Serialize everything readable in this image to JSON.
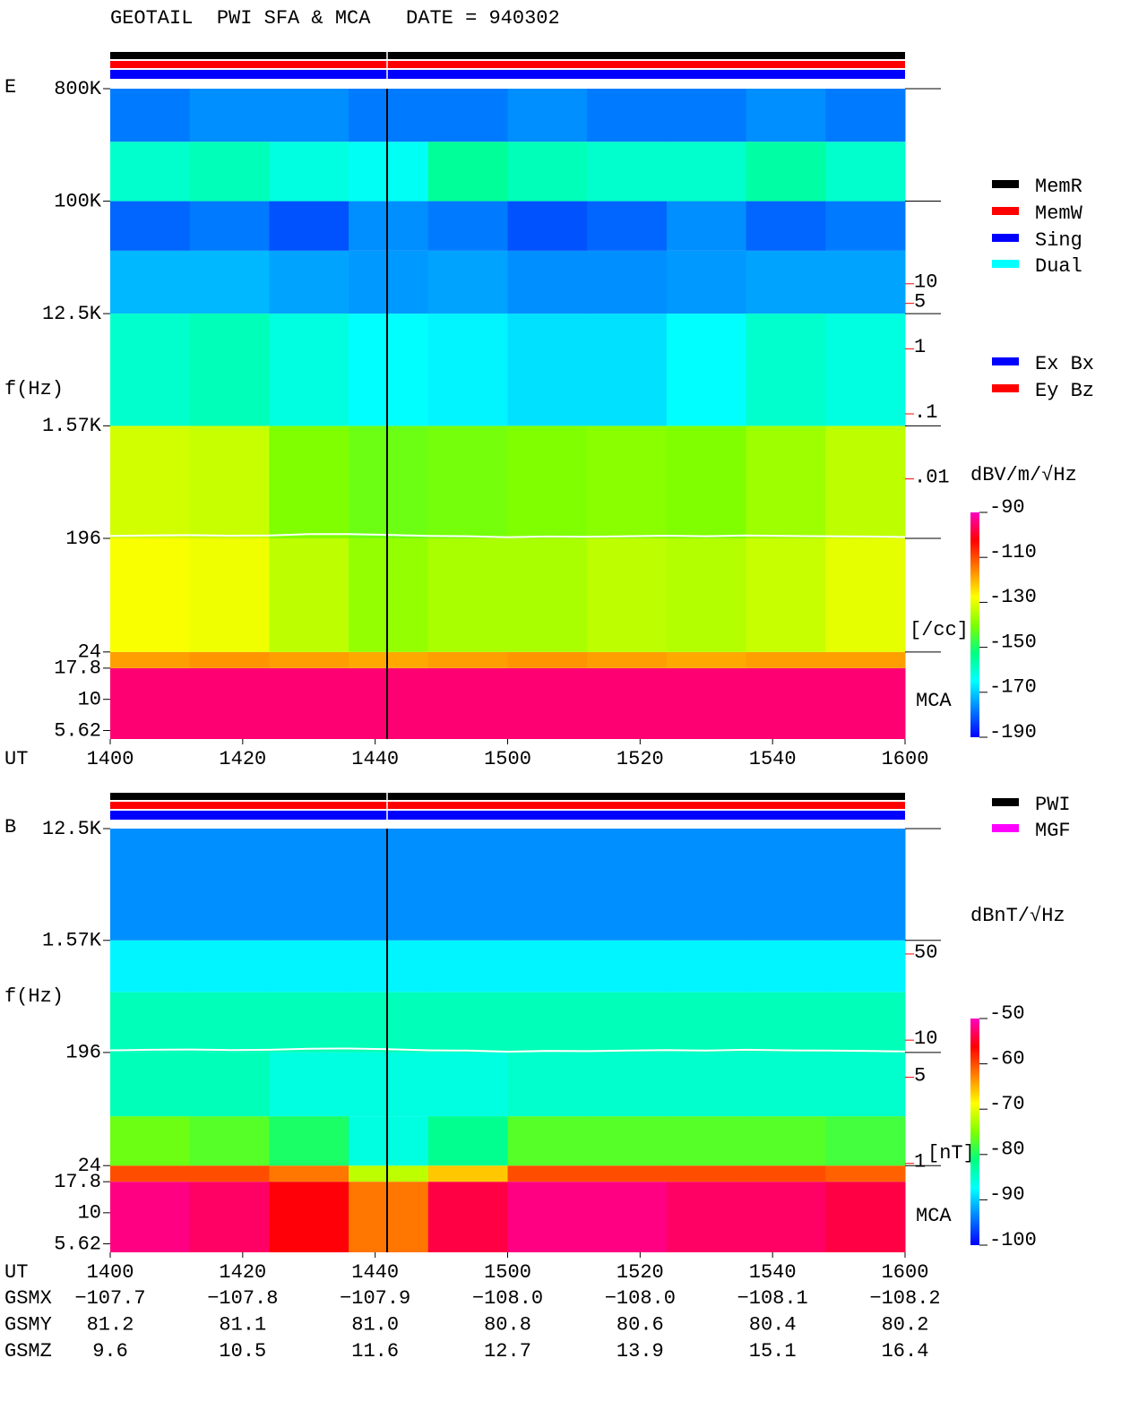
{
  "title": "GEOTAIL  PWI SFA & MCA   DATE = 940302",
  "chart_data": [
    {
      "type": "spectrogram",
      "panel_label": "E",
      "ylabel": "f(Hz)",
      "xlabel": "UT",
      "x_categories": [
        "1400",
        "1420",
        "1440",
        "1500",
        "1520",
        "1540",
        "1600"
      ],
      "log_y": true,
      "ylim": [
        4.8,
        800000
      ],
      "yticks": [
        {
          "value": 800000,
          "label": "800K"
        },
        {
          "value": 100000,
          "label": "100K"
        },
        {
          "value": 12500,
          "label": "12.5K"
        },
        {
          "value": 1570,
          "label": "1.57K"
        },
        196,
        24,
        17.8,
        10,
        5.62
      ],
      "y2lim": [
        1e-06,
        10000
      ],
      "y2ticks": [
        10,
        5,
        1,
        {
          "value": 0.1,
          "label": ".1"
        },
        {
          "value": 0.01,
          "label": ".01"
        }
      ],
      "y2label": "[/cc]",
      "y2color": "#ff0000",
      "region_label": "MCA",
      "freq_edges": [
        4.8,
        17.8,
        24,
        196,
        1570,
        12500,
        40000,
        100000,
        300000,
        800000
      ],
      "z": [
        [
          -95,
          -95,
          -95,
          -95,
          -95,
          -95,
          -95,
          -95,
          -95,
          -95
        ],
        [
          -118,
          -117,
          -118,
          -119,
          -118,
          -117,
          -118,
          -119,
          -118,
          -118
        ],
        [
          -128,
          -129,
          -134,
          -138,
          -136,
          -136,
          -134,
          -135,
          -133,
          -130
        ],
        [
          -132,
          -133,
          -140,
          -142,
          -141,
          -140,
          -139,
          -140,
          -137,
          -134
        ],
        [
          -160,
          -158,
          -162,
          -165,
          -166,
          -168,
          -168,
          -165,
          -160,
          -162
        ],
        [
          -172,
          -172,
          -174,
          -175,
          -174,
          -176,
          -176,
          -175,
          -174,
          -174
        ],
        [
          -180,
          -178,
          -182,
          -176,
          -178,
          -182,
          -180,
          -176,
          -180,
          -178
        ],
        [
          -160,
          -158,
          -162,
          -164,
          -155,
          -158,
          -160,
          -160,
          -156,
          -160
        ],
        [
          -178,
          -176,
          -176,
          -178,
          -178,
          -176,
          -178,
          -178,
          -176,
          -178
        ]
      ],
      "trace": {
        "color": "#ffffff",
        "values": [
          205,
          207,
          208,
          206,
          207,
          212,
          212,
          209,
          205,
          204,
          200,
          203,
          202,
          204,
          206,
          204,
          207,
          205,
          204,
          203,
          201
        ]
      },
      "colorbar": {
        "label": "dBV/m/√Hz",
        "clim": [
          -190,
          -90
        ],
        "ticks": [
          -90,
          -110,
          -130,
          -150,
          -170,
          -190
        ],
        "colors": [
          "#0000ff",
          "#0080ff",
          "#00ffff",
          "#00ff80",
          "#80ff00",
          "#ffff00",
          "#ff8000",
          "#ff0000",
          "#ff00c0"
        ]
      },
      "legend": [
        {
          "name": "MemR",
          "color": "#000000"
        },
        {
          "name": "MemW",
          "color": "#ff0000"
        },
        {
          "name": "Sing",
          "color": "#0000ff"
        },
        {
          "name": "Dual",
          "color": "#00ffff"
        },
        {
          "name": "Ex Bx",
          "color": "#0000ff"
        },
        {
          "name": "Ey Bz",
          "color": "#ff0000"
        }
      ]
    },
    {
      "type": "spectrogram",
      "panel_label": "B",
      "ylabel": "f(Hz)",
      "xlabel": "UT",
      "x_categories": [
        "1400",
        "1420",
        "1440",
        "1500",
        "1520",
        "1540",
        "1600"
      ],
      "log_y": true,
      "ylim": [
        4.8,
        12500
      ],
      "yticks": [
        {
          "value": 12500,
          "label": "12.5K"
        },
        {
          "value": 1570,
          "label": "1.57K"
        },
        196,
        24,
        17.8,
        10,
        5.62
      ],
      "y2lim": [
        0.19,
        520
      ],
      "y2ticks": [
        50,
        10,
        5,
        1
      ],
      "y2label": "[nT]",
      "y2color": "#ff0000",
      "region_label": "MCA",
      "freq_edges": [
        4.8,
        17.8,
        24,
        60,
        196,
        600,
        1570,
        12500
      ],
      "z": [
        [
          -52,
          -53,
          -56,
          -62,
          -54,
          -52,
          -52,
          -53,
          -53,
          -54
        ],
        [
          -60,
          -60,
          -62,
          -72,
          -66,
          -60,
          -60,
          -60,
          -60,
          -61
        ],
        [
          -76,
          -77,
          -80,
          -86,
          -82,
          -77,
          -77,
          -77,
          -77,
          -78
        ],
        [
          -84,
          -84,
          -86,
          -86,
          -86,
          -85,
          -85,
          -85,
          -85,
          -85
        ],
        [
          -84,
          -84,
          -84,
          -84,
          -84,
          -84,
          -84,
          -84,
          -84,
          -84
        ],
        [
          -88,
          -88,
          -88,
          -88,
          -88,
          -88,
          -88,
          -88,
          -88,
          -88
        ],
        [
          -93,
          -93,
          -93,
          -93,
          -93,
          -93,
          -93,
          -93,
          -93,
          -93
        ]
      ],
      "trace": {
        "color": "#ffffff",
        "values": [
          204,
          206,
          207,
          205,
          206,
          210,
          211,
          208,
          204,
          203,
          199,
          202,
          201,
          203,
          205,
          203,
          206,
          204,
          203,
          202,
          200
        ]
      },
      "colorbar": {
        "label": "dBnT/√Hz",
        "clim": [
          -100,
          -50
        ],
        "ticks": [
          -50,
          -60,
          -70,
          -80,
          -90,
          -100
        ],
        "colors": [
          "#0000ff",
          "#0080ff",
          "#00ffff",
          "#00ff80",
          "#80ff00",
          "#ffff00",
          "#ff8000",
          "#ff0000",
          "#ff00c0"
        ]
      },
      "legend": [
        {
          "name": "PWI",
          "color": "#000000"
        },
        {
          "name": "MGF",
          "color": "#ff00ff"
        }
      ]
    }
  ],
  "orbit": {
    "rows": [
      {
        "name": "GSMX",
        "values": [
          "−107.7",
          "−107.8",
          "−107.9",
          "−108.0",
          "−108.0",
          "−108.1",
          "−108.2"
        ]
      },
      {
        "name": "GSMY",
        "values": [
          "81.2",
          "81.1",
          "81.0",
          "80.8",
          "80.6",
          "80.4",
          "80.2"
        ]
      },
      {
        "name": "GSMZ",
        "values": [
          "9.6",
          "10.5",
          "11.6",
          "12.7",
          "13.9",
          "15.1",
          "16.4"
        ]
      }
    ]
  }
}
